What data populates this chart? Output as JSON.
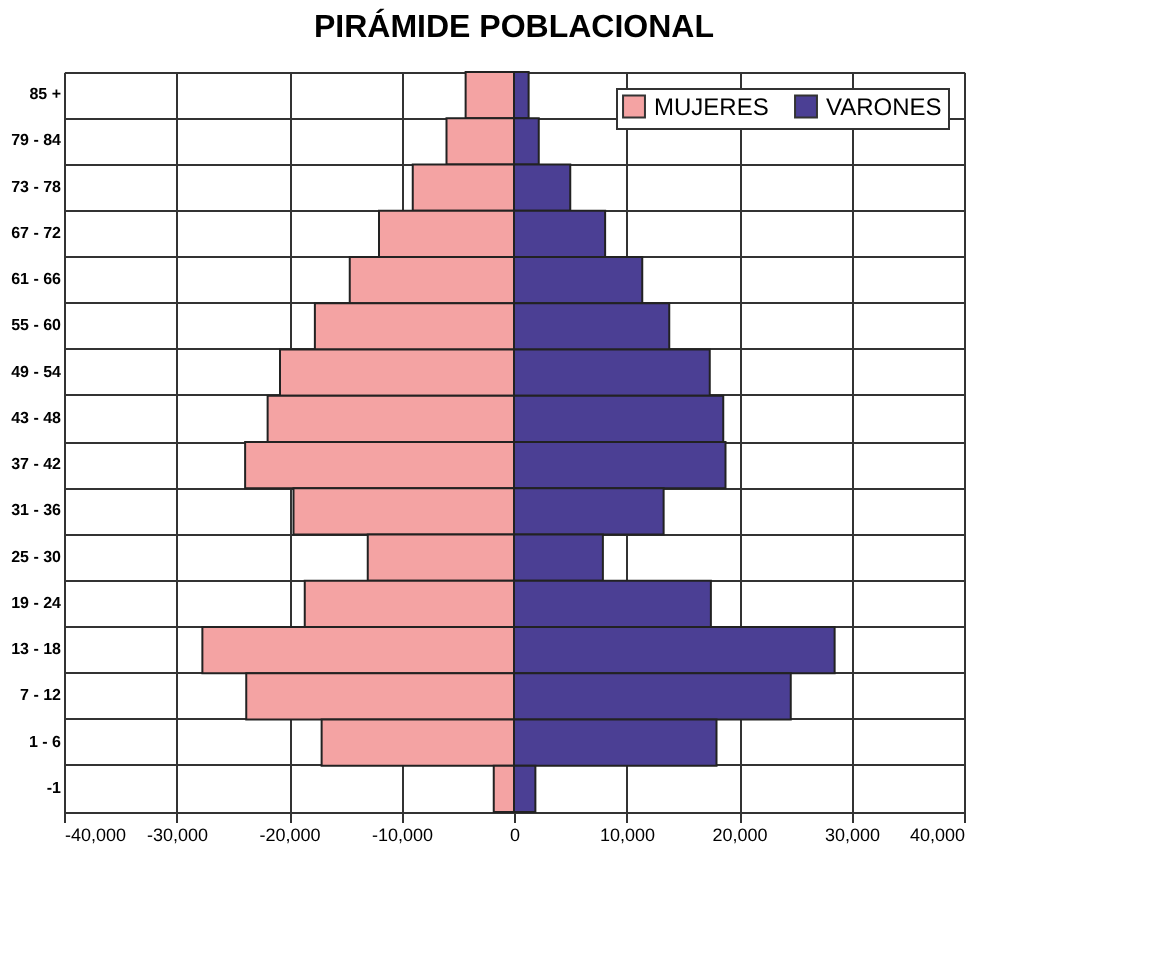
{
  "chart_data": {
    "type": "bar",
    "orientation": "horizontal",
    "stacked": true,
    "title": "PIRÁMIDE POBLACIONAL",
    "categories": [
      "85 +",
      "79 - 84",
      "73 - 78",
      "67 - 72",
      "61 - 66",
      "55 - 60",
      "49 - 54",
      "43 - 48",
      "37 - 42",
      "31 - 36",
      "25 - 30",
      "19 - 24",
      "13 - 18",
      "7 - 12",
      "1 - 6",
      "-1"
    ],
    "series": [
      {
        "name": "MUJERES",
        "color": "#f4a3a3",
        "values": [
          -4300,
          -6000,
          -9000,
          -12000,
          -14600,
          -17700,
          -20800,
          -21900,
          -23900,
          -19600,
          -13000,
          -18600,
          -27700,
          -23800,
          -17100,
          -1800
        ]
      },
      {
        "name": "VARONES",
        "color": "#4b3f94",
        "values": [
          1300,
          2200,
          5000,
          8100,
          11400,
          13800,
          17400,
          18600,
          18800,
          13300,
          7900,
          17500,
          28500,
          24600,
          18000,
          1900
        ]
      }
    ],
    "xlim": [
      -40000,
      40000
    ],
    "xticks": [
      {
        "value": -40000,
        "label": "-40,000"
      },
      {
        "value": -30000,
        "label": "-30,000"
      },
      {
        "value": -20000,
        "label": "-20,000"
      },
      {
        "value": -10000,
        "label": "-10,000"
      },
      0,
      {
        "value": 10000,
        "label": "10,000"
      },
      {
        "value": 20000,
        "label": "20,000"
      },
      {
        "value": 30000,
        "label": "30,000"
      },
      {
        "value": 40000,
        "label": "40,000"
      }
    ],
    "grid": true,
    "legend": "top right"
  }
}
